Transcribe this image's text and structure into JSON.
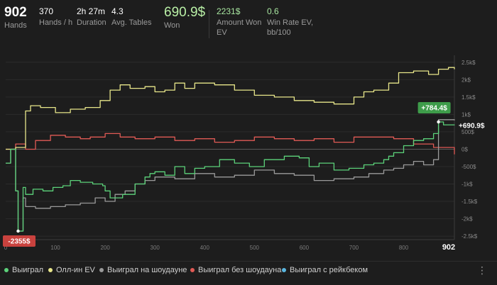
{
  "stats": {
    "hands": {
      "value": "902",
      "label": "Hands"
    },
    "hands_per_hour": {
      "value": "370",
      "label": "Hands / h"
    },
    "duration": {
      "value": "2h 27m",
      "label": "Duration"
    },
    "avg_tables": {
      "value": "4.3",
      "label": "Avg. Tables"
    },
    "won": {
      "value": "690.9$",
      "label": "Won"
    },
    "amount_won_ev": {
      "value": "2231$",
      "label": "Amount Won EV"
    },
    "win_rate_ev": {
      "value": "0.6",
      "label": "Win Rate EV, bb/100"
    }
  },
  "colors": {
    "won": "#5cd27a",
    "allin_ev": "#e8e68a",
    "showdown": "#9a9a9a",
    "no_showdown": "#e05a55",
    "rakeback": "#5ab6e0",
    "badge_pos": "#3e9c4a",
    "badge_neg": "#c9423e"
  },
  "chart_data": {
    "type": "line",
    "xlim": [
      0,
      902
    ],
    "ylim": [
      -2600,
      2700
    ],
    "x_ticks": [
      "0",
      "100",
      "200",
      "300",
      "400",
      "500",
      "600",
      "700",
      "800",
      "902"
    ],
    "y_ticks": [
      "2.5k$",
      "2k$",
      "1.5k$",
      "1k$",
      "500$",
      "0$",
      "-500$",
      "-1k$",
      "-1.5k$",
      "-2k$",
      "-2.5k$"
    ],
    "series": [
      {
        "name": "Выиграл",
        "color_key": "won",
        "x": [
          0,
          10,
          20,
          25,
          35,
          40,
          55,
          75,
          95,
          115,
          130,
          150,
          175,
          195,
          200,
          210,
          235,
          260,
          280,
          290,
          300,
          320,
          340,
          360,
          380,
          400,
          430,
          460,
          490,
          520,
          560,
          590,
          610,
          630,
          660,
          690,
          720,
          740,
          760,
          770,
          780,
          800,
          820,
          840,
          860,
          870,
          880,
          902
        ],
        "y": [
          -400,
          0,
          -1200,
          -2355,
          -1100,
          -1300,
          -1150,
          -1200,
          -1100,
          -1050,
          -900,
          -950,
          -1000,
          -1050,
          -1200,
          -1400,
          -1300,
          -1000,
          -800,
          -700,
          -650,
          -750,
          -500,
          -700,
          -550,
          -500,
          -300,
          -400,
          -500,
          -300,
          -200,
          -250,
          -500,
          -400,
          -600,
          -550,
          -450,
          -400,
          -300,
          -200,
          -100,
          100,
          250,
          300,
          450,
          784,
          700,
          690
        ]
      },
      {
        "name": "Олл-ин EV",
        "color_key": "allin_ev",
        "x": [
          0,
          20,
          40,
          50,
          70,
          100,
          130,
          160,
          190,
          210,
          230,
          250,
          280,
          300,
          320,
          340,
          360,
          380,
          420,
          460,
          500,
          540,
          580,
          620,
          660,
          700,
          720,
          740,
          770,
          790,
          820,
          850,
          870,
          890,
          902
        ],
        "y": [
          0,
          50,
          1100,
          1250,
          1200,
          1050,
          1150,
          1200,
          1400,
          1700,
          1850,
          1750,
          1800,
          1650,
          1700,
          1900,
          1750,
          1900,
          1850,
          1700,
          1550,
          1500,
          1400,
          1350,
          1300,
          1500,
          1650,
          1700,
          1900,
          2200,
          2250,
          2150,
          2300,
          2350,
          2300
        ]
      },
      {
        "name": "Выиграл на шоудауне",
        "color_key": "showdown",
        "x": [
          0,
          10,
          20,
          25,
          35,
          40,
          60,
          90,
          120,
          150,
          180,
          200,
          220,
          240,
          260,
          280,
          300,
          340,
          380,
          420,
          460,
          500,
          540,
          580,
          620,
          660,
          700,
          730,
          760,
          780,
          800,
          820,
          840,
          860,
          870,
          902
        ],
        "y": [
          -400,
          0,
          -1200,
          -2355,
          -1400,
          -1650,
          -1700,
          -1650,
          -1600,
          -1550,
          -1400,
          -1500,
          -1300,
          -1200,
          -1000,
          -900,
          -800,
          -850,
          -700,
          -800,
          -750,
          -600,
          -700,
          -750,
          -900,
          -850,
          -800,
          -700,
          -600,
          -550,
          -450,
          -350,
          -450,
          -300,
          850,
          830
        ]
      },
      {
        "name": "Выиграл без шоудауна",
        "color_key": "no_showdown",
        "x": [
          0,
          20,
          40,
          60,
          90,
          120,
          150,
          170,
          200,
          230,
          260,
          300,
          340,
          380,
          420,
          460,
          500,
          540,
          580,
          620,
          660,
          700,
          740,
          780,
          820,
          860,
          902
        ],
        "y": [
          0,
          150,
          0,
          250,
          400,
          350,
          300,
          350,
          450,
          350,
          300,
          350,
          250,
          300,
          200,
          250,
          350,
          300,
          250,
          300,
          200,
          350,
          350,
          300,
          150,
          50,
          -150
        ]
      },
      {
        "name": "Выиграл с рейкбеком",
        "color_key": "rakeback",
        "x": [],
        "y": []
      }
    ],
    "badges": [
      {
        "text": "+784.4$",
        "x": 870,
        "y": 784
      },
      {
        "text": "-2355$",
        "x": 25,
        "y": -2355
      }
    ],
    "end_label": "+690.9$"
  },
  "legend": {
    "items": [
      {
        "label": "Выиграл"
      },
      {
        "label": "Олл-ин EV"
      },
      {
        "label": "Выиграл на шоудауне"
      },
      {
        "label": "Выиграл без шоудауна"
      },
      {
        "label": "Выиграл с рейкбеком"
      }
    ],
    "more_icon": "vertical-ellipsis-icon"
  }
}
